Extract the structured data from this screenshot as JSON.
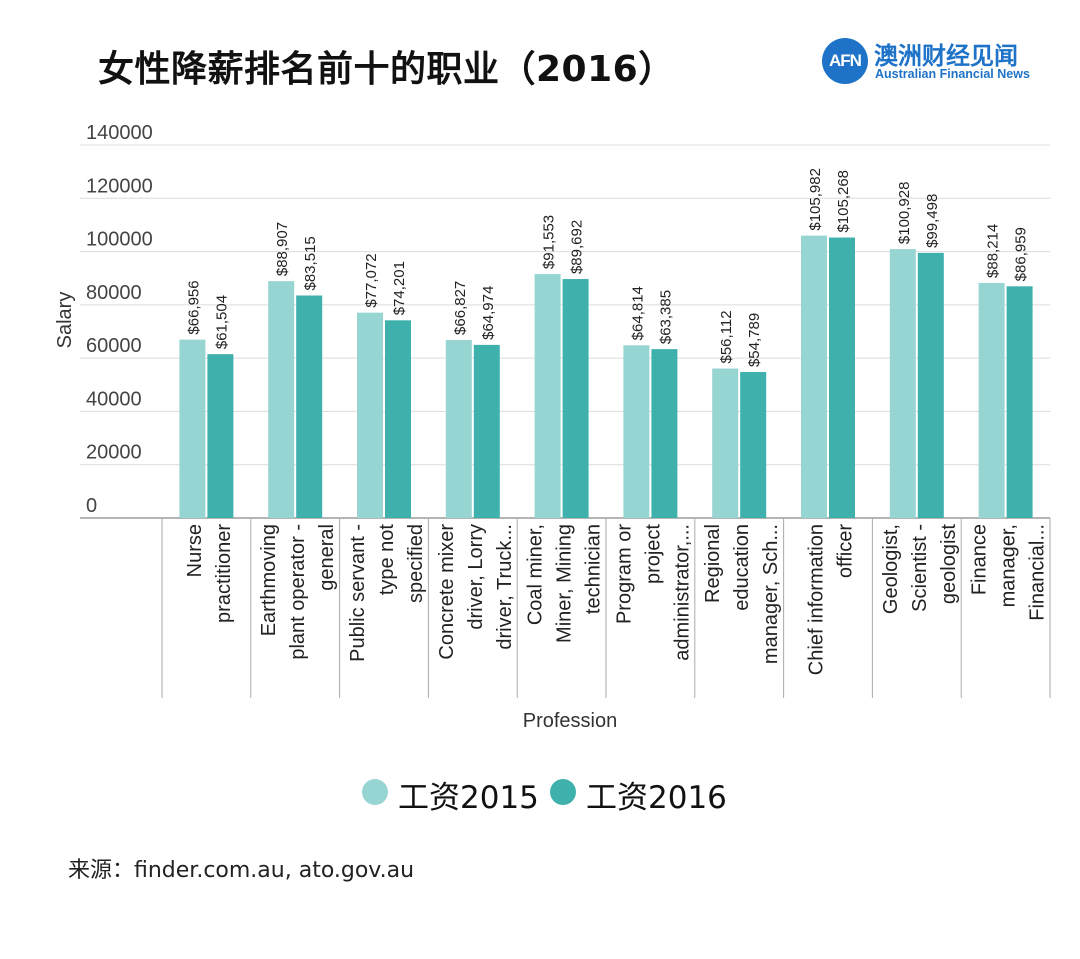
{
  "title": "女性降薪排名前十的职业（2016）",
  "brand": {
    "mark": "AFN",
    "name_cn": "澳洲财经见闻",
    "name_en": "Australian Financial News",
    "color": "#1e73c8"
  },
  "source": "来源：finder.com.au, ato.gov.au",
  "colors": {
    "series_2015": "#97d5d3",
    "series_2016": "#3fb1ad",
    "grid": "#dcdcdc"
  },
  "chart_data": {
    "type": "bar",
    "xlabel": "Profession",
    "ylabel": "Salary",
    "ylim": [
      0,
      140000
    ],
    "yticks": [
      "140000",
      "120000",
      "100000",
      "80000",
      "60000",
      "40000",
      "20000",
      "0"
    ],
    "categories": [
      [
        "Nurse",
        "practitioner"
      ],
      [
        "Earthmoving",
        "plant operator -",
        "general"
      ],
      [
        "Public servant -",
        "type not",
        "specified"
      ],
      [
        "Concrete mixer",
        "driver, Lorry",
        "driver, Truck..."
      ],
      [
        "Coal miner,",
        "Miner, Mining",
        "technician"
      ],
      [
        "Program or",
        "project",
        "administrator,..."
      ],
      [
        "Regional",
        "education",
        "manager, Sch..."
      ],
      [
        "Chief information",
        "officer"
      ],
      [
        "Geologist,",
        "Scientist -",
        "geologist"
      ],
      [
        "Finance",
        "manager,",
        "Financial..."
      ]
    ],
    "series": [
      {
        "name": "工资2015",
        "values": [
          66956,
          88907,
          77072,
          66827,
          91553,
          64814,
          56112,
          105982,
          100928,
          88214
        ],
        "labels": [
          "$66,956",
          "$88,907",
          "$77,072",
          "$66,827",
          "$91,553",
          "$64,814",
          "$56,112",
          "$105,982",
          "$100,928",
          "$88,214"
        ]
      },
      {
        "name": "工资2016",
        "values": [
          61504,
          83515,
          74201,
          64974,
          89692,
          63385,
          54789,
          105268,
          99498,
          86959
        ],
        "labels": [
          "$61,504",
          "$83,515",
          "$74,201",
          "$64,974",
          "$89,692",
          "$63,385",
          "$54,789",
          "$105,268",
          "$99,498",
          "$86,959"
        ]
      }
    ]
  }
}
